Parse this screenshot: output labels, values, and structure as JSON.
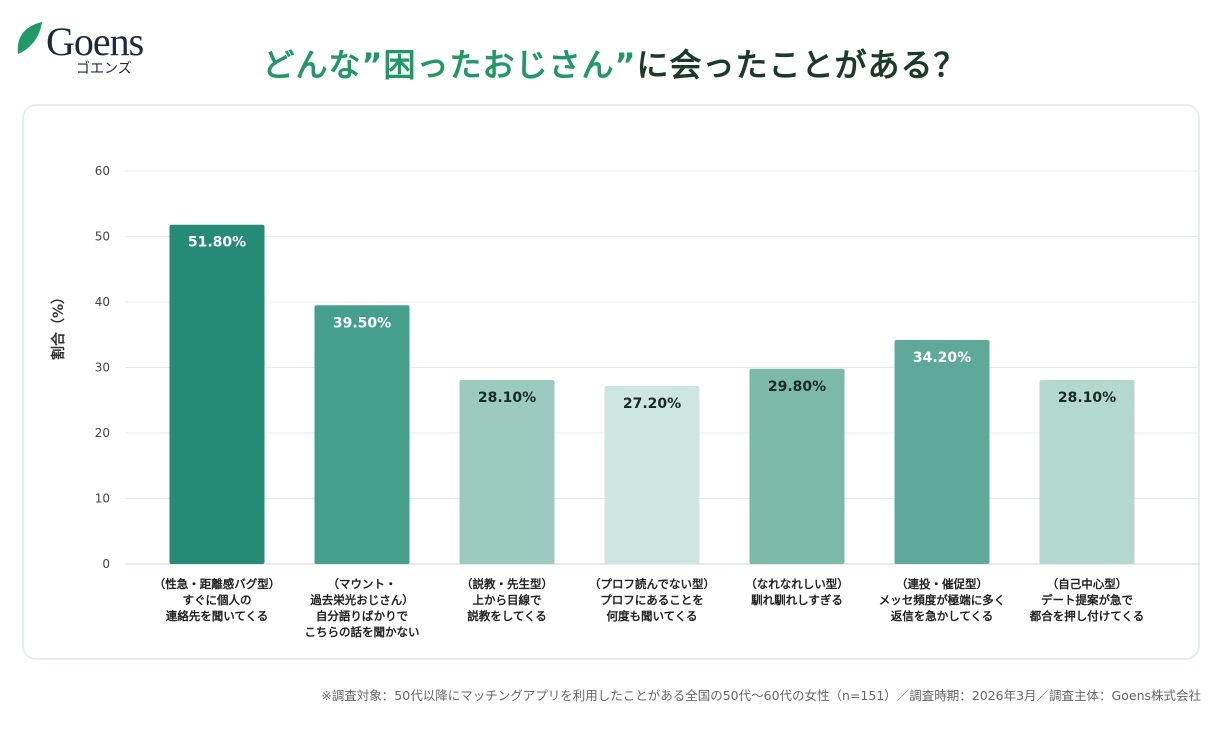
{
  "logo": {
    "word": "Goens",
    "kana": "ゴエンズ",
    "leaf_color": "#1e9a64"
  },
  "title": {
    "part1": "どんな”困ったおじさん”",
    "part2": "に会ったことがある？"
  },
  "note": "※調査対象：50代以降にマッチングアプリを利用したことがある全国の50代〜60代の女性（n=151）／調査時期：2026年3月／調査主体：Goens株式会社",
  "chart_data": {
    "type": "bar",
    "ylabel": "割合（%）",
    "ylim": [
      0,
      60
    ],
    "yticks": [
      0,
      10,
      20,
      30,
      40,
      50,
      60
    ],
    "grid": true,
    "categories": [
      [
        "（性急・距離感バグ型）",
        "すぐに個人の",
        "連絡先を聞いてくる"
      ],
      [
        "（マウント・",
        "過去栄光おじさん）",
        "自分語りばかりで",
        "こちらの話を聞かない"
      ],
      [
        "（説教・先生型）",
        "上から目線で",
        "説教をしてくる"
      ],
      [
        "（プロフ読んでない型）",
        "プロフにあることを",
        "何度も聞いてくる"
      ],
      [
        "（なれなれしい型）",
        "馴れ馴れしすぎる"
      ],
      [
        "（連投・催促型）",
        "メッセ頻度が極端に多く",
        "返信を急かしてくる"
      ],
      [
        "（自己中心型）",
        "デート提案が急で",
        "都合を押し付けてくる"
      ]
    ],
    "values": [
      51.8,
      39.5,
      28.1,
      27.2,
      29.8,
      34.2,
      28.1
    ],
    "data_labels": [
      "51.80%",
      "39.50%",
      "28.10%",
      "27.20%",
      "29.80%",
      "34.20%",
      "28.10%"
    ],
    "colors": [
      "#238b76",
      "#44a08c",
      "#9acbbe",
      "#cde6df",
      "#7bbaa9",
      "#5ea99a",
      "#b3d8cd"
    ],
    "label_colors": [
      "#ffffff",
      "#ffffff",
      "#1a2a24",
      "#1a2a24",
      "#1a2a24",
      "#ffffff",
      "#1a2a24"
    ]
  }
}
